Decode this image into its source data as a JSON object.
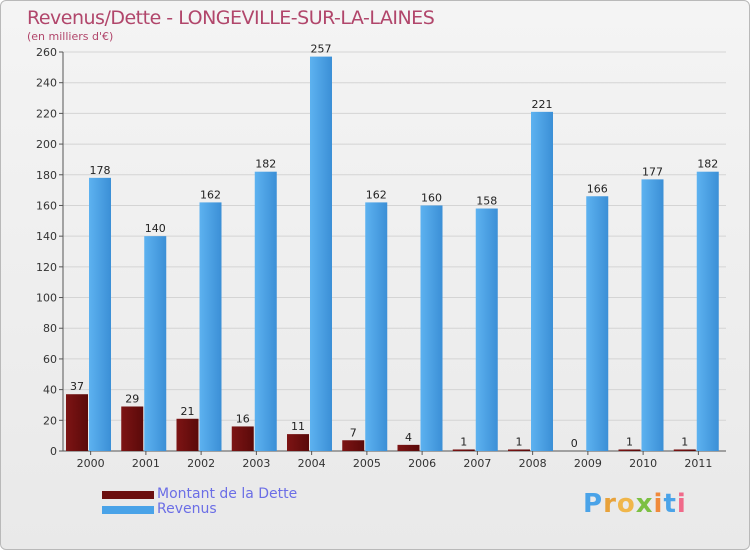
{
  "header": {
    "title": "Revenus/Dette - LONGEVILLE-SUR-LA-LAINES",
    "subtitle": "(en milliers d'€)"
  },
  "colors": {
    "dette": "#6b0f0f",
    "revenus": "#4aa3e8",
    "title": "#b1466b",
    "legend_text": "#6b6ee6"
  },
  "legend": {
    "dette_label": "Montant de la Dette",
    "revenus_label": "Revenus"
  },
  "logo": {
    "letters": [
      "P",
      "r",
      "o",
      "x",
      "i",
      "t",
      "i"
    ],
    "letter_colors": [
      "#4aa3e8",
      "#e8a23a",
      "#f0b64a",
      "#7cc043",
      "#f08a3c",
      "#4aa3e8",
      "#f06a8a"
    ]
  },
  "chart_data": {
    "type": "bar",
    "categories": [
      "2000",
      "2001",
      "2002",
      "2003",
      "2004",
      "2005",
      "2006",
      "2007",
      "2008",
      "2009",
      "2010",
      "2011"
    ],
    "series": [
      {
        "name": "Montant de la Dette",
        "values": [
          37,
          29,
          21,
          16,
          11,
          7,
          4,
          1,
          1,
          0,
          1,
          1
        ]
      },
      {
        "name": "Revenus",
        "values": [
          178,
          140,
          162,
          182,
          257,
          162,
          160,
          158,
          221,
          166,
          177,
          182
        ]
      }
    ],
    "title": "Revenus/Dette - LONGEVILLE-SUR-LA-LAINES",
    "ylabel": "(en milliers d'€)",
    "ylim": [
      0,
      260
    ],
    "yticks": [
      0,
      20,
      40,
      60,
      80,
      100,
      120,
      140,
      160,
      180,
      200,
      220,
      240,
      260
    ],
    "grid": true,
    "legend_position": "bottom-left"
  }
}
